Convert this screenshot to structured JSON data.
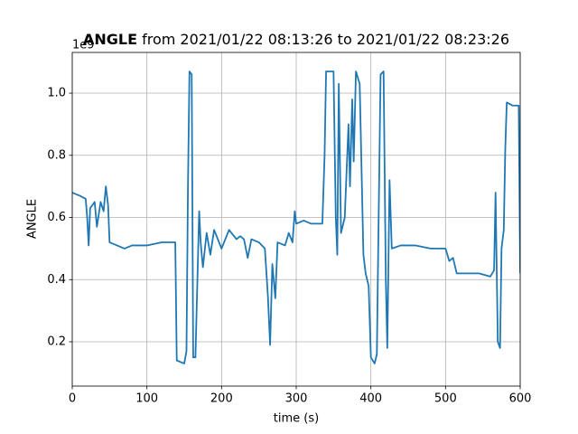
{
  "chart_data": {
    "type": "line",
    "title_bold": "ANGLE",
    "title": "from 2021/01/22 08:13:26 to 2021/01/22 08:23:26",
    "x_label": "time (s)",
    "y_label": "ANGLE",
    "y_offset_label": "1e9",
    "xlim": [
      0,
      600
    ],
    "ylim": [
      0.0575,
      1.131
    ],
    "xticks": [
      0,
      100,
      200,
      300,
      400,
      500,
      600
    ],
    "yticks": [
      0.2,
      0.4,
      0.6,
      0.8,
      {
        "value": 1,
        "label": "1.0"
      }
    ],
    "grid": true,
    "x": [
      0,
      10,
      18,
      20,
      22,
      24,
      30,
      33,
      38,
      42,
      45,
      48,
      50,
      60,
      70,
      80,
      100,
      120,
      138,
      140,
      150,
      153,
      155,
      157,
      160,
      162,
      165,
      170,
      172,
      175,
      180,
      185,
      190,
      200,
      210,
      220,
      225,
      230,
      235,
      240,
      250,
      258,
      262,
      265,
      268,
      272,
      275,
      285,
      290,
      295,
      298,
      300,
      310,
      320,
      335,
      338,
      340,
      350,
      353,
      355,
      357,
      360,
      365,
      370,
      372,
      375,
      377,
      380,
      385,
      388,
      390,
      393,
      397,
      400,
      405,
      408,
      410,
      413,
      417,
      420,
      422,
      425,
      428,
      440,
      460,
      480,
      500,
      505,
      510,
      515,
      530,
      545,
      560,
      565,
      567,
      570,
      573,
      575,
      578,
      580,
      582,
      590,
      598,
      600
    ],
    "series": [
      {
        "name": "ANGLE",
        "color": "#1f77b4",
        "values": [
          0.68,
          0.67,
          0.66,
          0.6,
          0.51,
          0.63,
          0.65,
          0.57,
          0.65,
          0.62,
          0.7,
          0.64,
          0.52,
          0.51,
          0.5,
          0.51,
          0.51,
          0.52,
          0.52,
          0.14,
          0.13,
          0.17,
          0.7,
          1.07,
          1.06,
          0.15,
          0.15,
          0.62,
          0.52,
          0.44,
          0.55,
          0.48,
          0.56,
          0.5,
          0.56,
          0.53,
          0.54,
          0.53,
          0.47,
          0.53,
          0.52,
          0.5,
          0.35,
          0.19,
          0.45,
          0.34,
          0.52,
          0.51,
          0.55,
          0.52,
          0.62,
          0.58,
          0.59,
          0.58,
          0.58,
          0.8,
          1.07,
          1.07,
          0.6,
          0.48,
          1.03,
          0.55,
          0.6,
          0.9,
          0.7,
          0.98,
          0.78,
          1.07,
          1.03,
          0.7,
          0.48,
          0.42,
          0.38,
          0.15,
          0.13,
          0.16,
          0.53,
          1.06,
          1.07,
          0.4,
          0.18,
          0.72,
          0.5,
          0.51,
          0.51,
          0.5,
          0.5,
          0.46,
          0.47,
          0.42,
          0.42,
          0.42,
          0.41,
          0.43,
          0.68,
          0.2,
          0.18,
          0.5,
          0.56,
          0.82,
          0.97,
          0.96,
          0.96,
          0.42
        ]
      }
    ]
  }
}
